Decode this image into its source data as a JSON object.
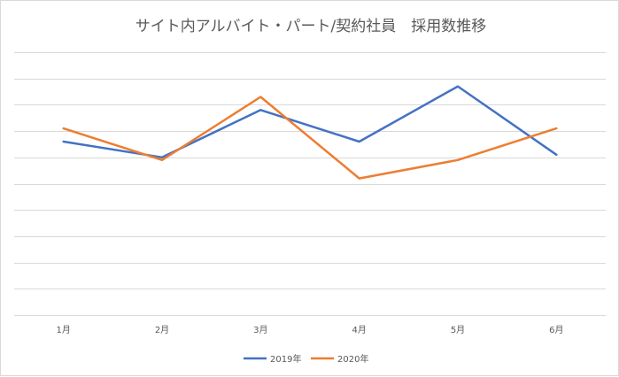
{
  "chart_data": {
    "type": "line",
    "title": "サイト内アルバイト・パート/契約社員　採用数推移",
    "categories": [
      "1月",
      "2月",
      "3月",
      "4月",
      "5月",
      "6月"
    ],
    "ylim": [
      0,
      10
    ],
    "grid": true,
    "legend_position": "bottom",
    "series": [
      {
        "name": "2019年",
        "color": "#4472c4",
        "values": [
          6.6,
          6.0,
          7.8,
          6.6,
          8.7,
          6.1
        ]
      },
      {
        "name": "2020年",
        "color": "#ed7d31",
        "values": [
          7.1,
          5.9,
          8.3,
          5.2,
          5.9,
          7.1
        ]
      }
    ]
  }
}
